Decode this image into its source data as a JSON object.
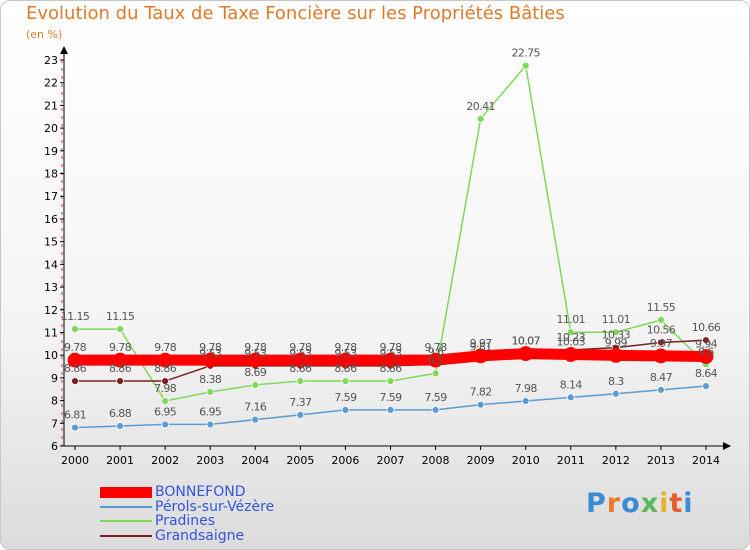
{
  "header": {
    "title": "Evolution du Taux de Taxe Foncière sur les Propriétés Bâties",
    "unit": "(en %)"
  },
  "logo": {
    "text": "Proxiti"
  },
  "colors": {
    "title": "#e07a2a",
    "axis": "#000000",
    "grid": "#e03030",
    "label_text": "#555555"
  },
  "chart_data": {
    "type": "line",
    "title": "Evolution du Taux de Taxe Foncière sur les Propriétés Bâties",
    "ylabel": "(en %)",
    "xlabel": "",
    "x": [
      "2000",
      "2001",
      "2002",
      "2003",
      "2004",
      "2005",
      "2006",
      "2007",
      "2008",
      "2009",
      "2010",
      "2011",
      "2012",
      "2013",
      "2014"
    ],
    "y_ticks": [
      "6",
      "7",
      "8",
      "9",
      "10",
      "11",
      "12",
      "13",
      "14",
      "15",
      "16",
      "17",
      "18",
      "19",
      "20",
      "21",
      "22",
      "23"
    ],
    "ylim": [
      6,
      23
    ],
    "grid": false,
    "legend_position": "bottom-left",
    "series": [
      {
        "name": "BONNEFOND",
        "color": "#ff0000",
        "thick": true,
        "values": [
          9.78,
          9.78,
          9.78,
          9.78,
          9.78,
          9.78,
          9.78,
          9.78,
          9.78,
          9.97,
          10.07,
          10.03,
          9.99,
          9.97,
          9.94
        ],
        "labels": [
          "9.78",
          "9.78",
          "9.78",
          "9.78",
          "9.78",
          "9.78",
          "9.78",
          "9.78",
          "9.78",
          "9.97",
          "10.07",
          "10.03",
          "9.99",
          "9.97",
          "9.94"
        ]
      },
      {
        "name": "Pérols-sur-Vézère",
        "color": "#5b9bd5",
        "thick": false,
        "values": [
          6.81,
          6.88,
          6.95,
          6.95,
          7.16,
          7.37,
          7.59,
          7.59,
          7.59,
          7.82,
          7.98,
          8.14,
          8.3,
          8.47,
          8.64
        ],
        "labels": [
          "6.81",
          "6.88",
          "6.95",
          "6.95",
          "7.16",
          "7.37",
          "7.59",
          "7.59",
          "7.59",
          "7.82",
          "7.98",
          "8.14",
          "8.3",
          "8.47",
          "8.64"
        ]
      },
      {
        "name": "Pradines",
        "color": "#7ed957",
        "thick": false,
        "values": [
          11.15,
          11.15,
          7.98,
          8.38,
          8.69,
          8.86,
          8.86,
          8.86,
          9.2,
          20.41,
          22.75,
          11.01,
          11.01,
          11.55,
          9.6
        ],
        "labels": [
          "11.15",
          "11.15",
          "7.98",
          "8.38",
          "8.69",
          "8.86",
          "8.86",
          "8.86",
          "9.2",
          "20.41",
          "22.75",
          "11.01",
          "11.01",
          "11.55",
          "9.6"
        ]
      },
      {
        "name": "Grandsaigne",
        "color": "#7a1f1f",
        "thick": false,
        "values": [
          8.86,
          8.86,
          8.86,
          9.53,
          9.53,
          9.53,
          9.53,
          9.53,
          9.6,
          9.81,
          10.07,
          10.23,
          10.33,
          10.56,
          10.66
        ],
        "labels": [
          "8.86",
          "8.86",
          "8.86",
          "9.53",
          "9.53",
          "9.53",
          "9.53",
          "9.53",
          "9.6",
          "9.81",
          "10.07",
          "10.23",
          "10.33",
          "10.56",
          "10.66"
        ]
      }
    ]
  }
}
